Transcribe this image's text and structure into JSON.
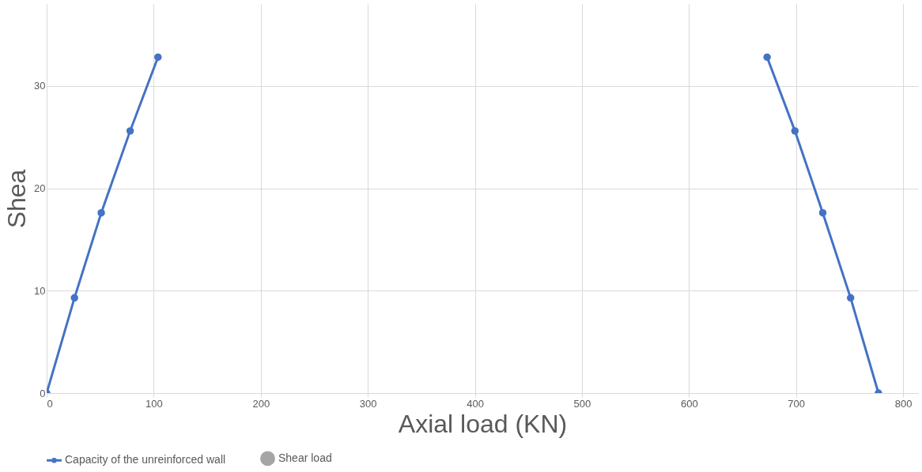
{
  "chart_data": {
    "type": "line",
    "xlabel": "Axial load (KN)",
    "ylabel": "Shea",
    "x": [
      0,
      26,
      51,
      78,
      104,
      null,
      673,
      699,
      725,
      751,
      777
    ],
    "series": [
      {
        "name": "Capacity of the unreinforced wall",
        "color": "#4472c4",
        "values": [
          0,
          9.3,
          17.6,
          25.6,
          32.8,
          null,
          32.8,
          25.6,
          17.6,
          9.3,
          0
        ]
      },
      {
        "name": "Shear load",
        "color": "#a5a5a5",
        "type": "scatter",
        "values": [
          null,
          null,
          null,
          null,
          null,
          null,
          null,
          null,
          null,
          null,
          null
        ]
      }
    ],
    "xlim": [
      0,
      814
    ],
    "xticks": [
      0,
      100,
      200,
      300,
      400,
      500,
      600,
      700,
      800
    ],
    "ylim": [
      0,
      38
    ],
    "yticks": [
      0,
      10,
      20,
      30
    ],
    "grid": true,
    "legend": "bottom",
    "marker": "circle",
    "line_style": "solid"
  }
}
